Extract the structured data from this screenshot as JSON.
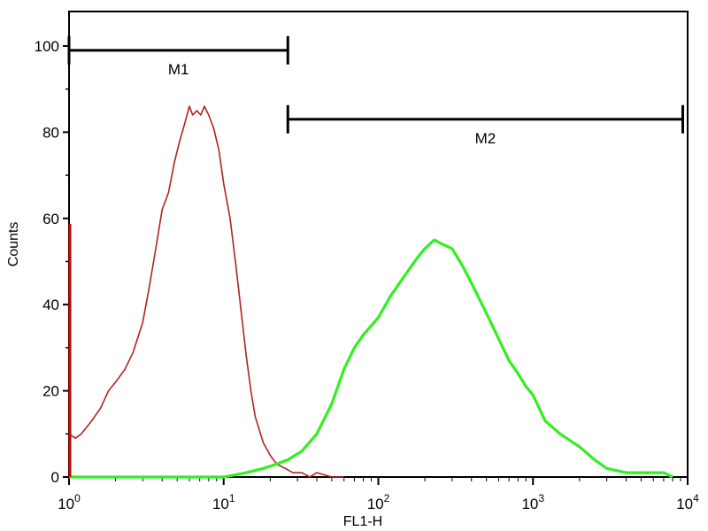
{
  "chart_data": {
    "type": "line",
    "title": "",
    "xlabel": "FL1-H",
    "ylabel": "Counts",
    "x_scale": "log",
    "xlim": [
      1,
      10000
    ],
    "ylim": [
      0,
      108
    ],
    "x_ticks": [
      {
        "base": "10",
        "exp": "0",
        "value": 1
      },
      {
        "base": "10",
        "exp": "1",
        "value": 10
      },
      {
        "base": "10",
        "exp": "2",
        "value": 100
      },
      {
        "base": "10",
        "exp": "3",
        "value": 1000
      },
      {
        "base": "10",
        "exp": "4",
        "value": 10000
      }
    ],
    "y_ticks": [
      "0",
      "20",
      "40",
      "60",
      "80",
      "100"
    ],
    "grid": false,
    "markers": [
      {
        "label": "M1",
        "x_start": 1,
        "x_end": 26,
        "y": 99
      },
      {
        "label": "M2",
        "x_start": 26,
        "x_end": 9300,
        "y": 83
      }
    ],
    "series": [
      {
        "color": "#b22222",
        "x": [
          1.0,
          1.1,
          1.2,
          1.4,
          1.6,
          1.8,
          2.0,
          2.3,
          2.6,
          3.0,
          3.3,
          3.6,
          4.0,
          4.4,
          4.8,
          5.2,
          5.6,
          6.0,
          6.3,
          6.7,
          7.1,
          7.5,
          8.0,
          8.6,
          9.3,
          10,
          11,
          12,
          13,
          14,
          15,
          16,
          18,
          20,
          22,
          25,
          28,
          32,
          36,
          40,
          50,
          60
        ],
        "values": [
          10,
          9,
          10,
          13,
          16,
          20,
          22,
          25,
          29,
          36,
          44,
          52,
          62,
          66,
          73,
          78,
          82,
          86,
          84,
          85,
          84,
          86,
          84,
          81,
          76,
          68,
          60,
          49,
          38,
          28,
          20,
          14,
          8,
          5,
          3,
          2,
          1,
          1,
          0,
          1,
          0,
          0
        ]
      },
      {
        "color": "#33ee22",
        "x": [
          1,
          10,
          14,
          18,
          22,
          26,
          32,
          40,
          50,
          60,
          70,
          80,
          100,
          120,
          150,
          180,
          200,
          230,
          260,
          300,
          350,
          400,
          500,
          600,
          700,
          800,
          900,
          1000,
          1200,
          1500,
          2000,
          2500,
          3000,
          4000,
          5000,
          7000,
          8000
        ],
        "values": [
          0,
          0,
          1,
          2,
          3,
          4,
          6,
          10,
          17,
          25,
          30,
          33,
          37,
          42,
          47,
          51,
          53,
          55,
          54,
          53,
          49,
          45,
          38,
          32,
          27,
          24,
          21,
          19,
          13,
          10,
          7,
          4,
          2,
          1,
          1,
          1,
          0
        ]
      }
    ]
  }
}
